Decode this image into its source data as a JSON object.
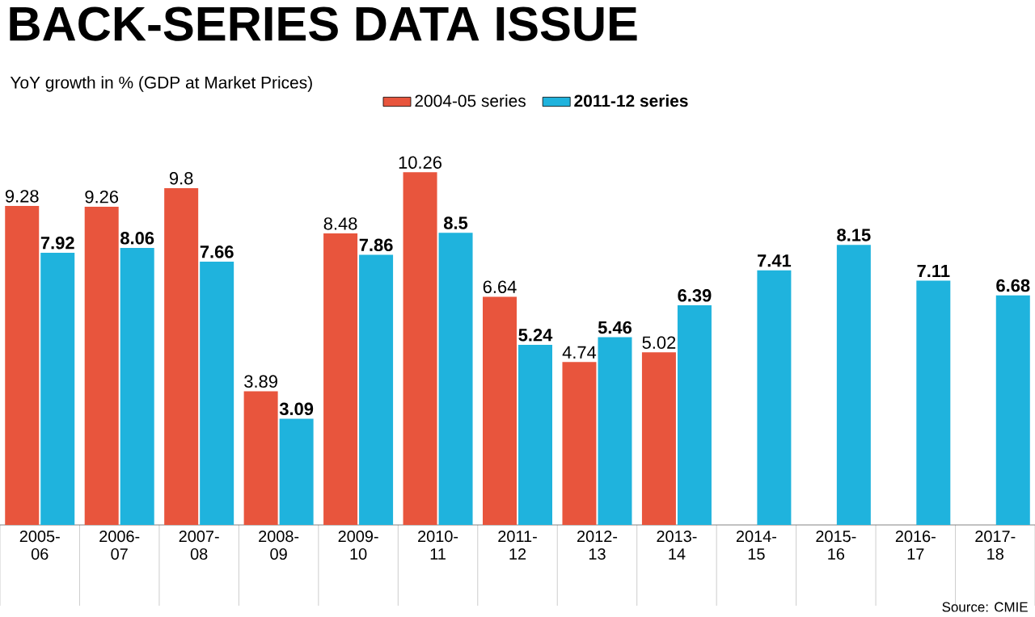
{
  "chart_data": {
    "type": "bar",
    "title": "BACK-SERIES DATA ISSUE",
    "subtitle": "YoY growth in % (GDP at Market Prices)",
    "categories": [
      "2005-06",
      "2006-07",
      "2007-08",
      "2008-09",
      "2009-10",
      "2010-11",
      "2011-12",
      "2012-13",
      "2013-14",
      "2014-15",
      "2015-16",
      "2016-17",
      "2017-18"
    ],
    "series": [
      {
        "name": "2004-05 series",
        "color": "#e8553d",
        "values": [
          9.28,
          9.26,
          9.8,
          3.89,
          8.48,
          10.26,
          6.64,
          4.74,
          5.02,
          null,
          null,
          null,
          null
        ]
      },
      {
        "name": "2011-12 series",
        "color": "#1fb3dd",
        "values": [
          7.92,
          8.06,
          7.66,
          3.09,
          7.86,
          8.5,
          5.24,
          5.46,
          6.39,
          7.41,
          8.15,
          7.11,
          6.68
        ]
      }
    ],
    "data_labels": true,
    "legend": "top",
    "annotations": [
      "Source: CMIE"
    ]
  }
}
